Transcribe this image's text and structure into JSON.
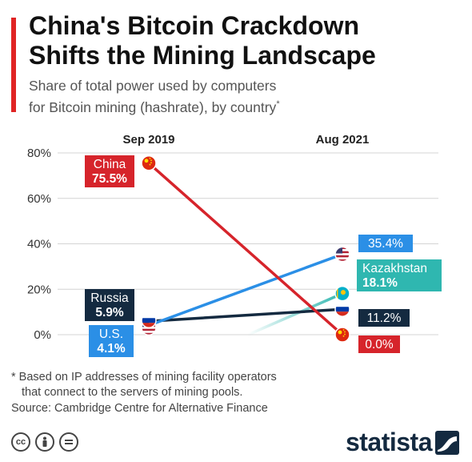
{
  "header": {
    "title_line1": "China's Bitcoin Crackdown",
    "title_line2": "Shifts the Mining Landscape",
    "subtitle_line1": "Share of total power used by computers",
    "subtitle_line2": "for Bitcoin mining (hashrate), by country",
    "subtitle_mark": "*",
    "accent_color": "#e02424"
  },
  "chart_data": {
    "type": "line",
    "categories": [
      "Sep 2019",
      "Aug 2021"
    ],
    "ylim": [
      0,
      80
    ],
    "yticks": [
      "0%",
      "20%",
      "40%",
      "60%",
      "80%"
    ],
    "grid": true,
    "series": [
      {
        "name": "China",
        "values": [
          75.5,
          0.0
        ],
        "labels": [
          "75.5%",
          "0.0%"
        ],
        "color": "#d6242b",
        "flag": "china-flag"
      },
      {
        "name": "Russia",
        "values": [
          5.9,
          11.2
        ],
        "labels": [
          "5.9%",
          "11.2%"
        ],
        "color": "#142a40",
        "flag": "russia-flag"
      },
      {
        "name": "U.S.",
        "values": [
          4.1,
          35.4
        ],
        "labels": [
          "4.1%",
          "35.4%"
        ],
        "color": "#2b8fe6",
        "flag": "usa-flag"
      },
      {
        "name": "Kazakhstan",
        "values": [
          null,
          18.1
        ],
        "labels": [
          "",
          "18.1%"
        ],
        "color": "#2fb7b0",
        "flag": "kazakhstan-flag"
      }
    ]
  },
  "footer": {
    "footnote_line1": "* Based on IP addresses of mining facility operators",
    "footnote_line2": "that connect to the servers of mining pools.",
    "source": "Source: Cambridge Centre for Alternative Finance",
    "brand": "statista",
    "license_icons": [
      "cc-icon",
      "attribution-icon",
      "no-derivatives-icon"
    ]
  }
}
